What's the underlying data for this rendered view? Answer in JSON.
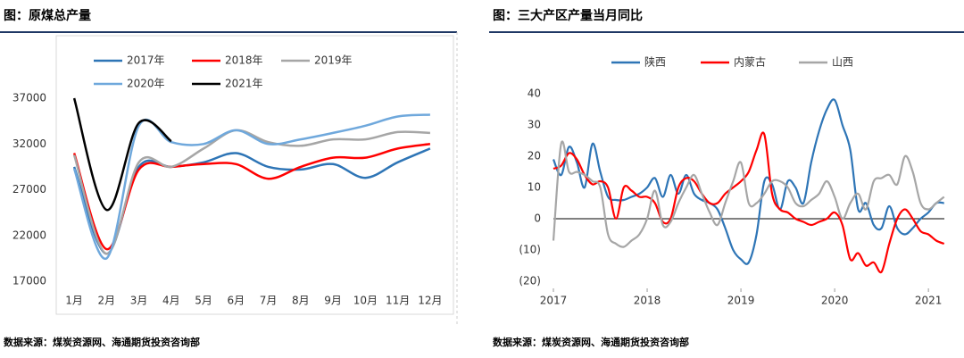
{
  "chart_data": [
    {
      "type": "line",
      "title": "图：原煤总产量",
      "source": "数据来源：煤炭资源网、海通期货投资咨询部",
      "categories": [
        "1月",
        "2月",
        "3月",
        "4月",
        "5月",
        "6月",
        "7月",
        "8月",
        "9月",
        "10月",
        "11月",
        "12月"
      ],
      "series": [
        {
          "name": "2017年",
          "color": "#2e75b6",
          "values": [
            29500,
            20000,
            29500,
            29500,
            30000,
            31000,
            29500,
            29200,
            29800,
            28300,
            30000,
            31500
          ]
        },
        {
          "name": "2018年",
          "color": "#ff0000",
          "values": [
            31000,
            20500,
            29200,
            29500,
            29800,
            29800,
            28200,
            29500,
            30500,
            30500,
            31500,
            32000
          ]
        },
        {
          "name": "2019年",
          "color": "#a6a6a6",
          "values": [
            30800,
            20000,
            30000,
            29500,
            31500,
            33500,
            32200,
            31800,
            32500,
            32500,
            33300,
            33200
          ]
        },
        {
          "name": "2020年",
          "color": "#6fa8dc",
          "values": [
            29300,
            19500,
            34000,
            32200,
            32000,
            33500,
            32000,
            32500,
            33200,
            34000,
            35000,
            35200
          ]
        },
        {
          "name": "2021年",
          "color": "#000000",
          "values": [
            37000,
            24800,
            34300,
            32300,
            null,
            null,
            null,
            null,
            null,
            null,
            null,
            null
          ]
        }
      ],
      "ylim": [
        17000,
        43000
      ],
      "yticks": [
        17000,
        22000,
        27000,
        32000,
        37000
      ]
    },
    {
      "type": "line",
      "title": "图：三大产区产量当月同比",
      "source": "数据来源：煤炭资源网、海通期货投资咨询部",
      "x": [
        2017,
        2017.083,
        2017.167,
        2017.25,
        2017.333,
        2017.417,
        2017.5,
        2017.583,
        2017.667,
        2017.75,
        2017.833,
        2017.917,
        2018,
        2018.083,
        2018.167,
        2018.25,
        2018.333,
        2018.417,
        2018.5,
        2018.583,
        2018.667,
        2018.75,
        2018.833,
        2018.917,
        2019,
        2019.083,
        2019.167,
        2019.25,
        2019.333,
        2019.417,
        2019.5,
        2019.583,
        2019.667,
        2019.75,
        2019.833,
        2019.917,
        2020,
        2020.083,
        2020.167,
        2020.25,
        2020.333,
        2020.417,
        2020.5,
        2020.583,
        2020.667,
        2020.75,
        2020.833,
        2020.917,
        2021,
        2021.083,
        2021.167
      ],
      "series": [
        {
          "name": "陕西",
          "color": "#2e75b6",
          "values": [
            19,
            14,
            23,
            18,
            10,
            24,
            15,
            7,
            6,
            6,
            7,
            8,
            10,
            13,
            7,
            14,
            8,
            14,
            8,
            6,
            5,
            3,
            -3,
            -10,
            -13,
            -14,
            -5,
            12,
            11,
            3,
            12,
            10,
            5,
            18,
            28,
            35,
            38,
            30,
            22,
            3,
            5,
            -2,
            -3,
            4,
            -3,
            -5,
            -3,
            0,
            2,
            5,
            5
          ]
        },
        {
          "name": "内蒙古",
          "color": "#ff0000",
          "values": [
            16,
            17,
            21,
            19,
            14,
            11,
            12,
            10,
            0,
            10,
            9,
            7,
            7,
            5,
            -1,
            0,
            10,
            13,
            12,
            8,
            5,
            5,
            8,
            10,
            12,
            15,
            22,
            27,
            8,
            3,
            2,
            0,
            -1,
            -2,
            -1,
            0,
            2,
            -2,
            -13,
            -11,
            -15,
            -14,
            -17,
            -8,
            0,
            3,
            0,
            -4,
            -5,
            -7,
            -8
          ]
        },
        {
          "name": "山西",
          "color": "#a6a6a6",
          "values": [
            -7,
            24,
            15,
            15,
            14,
            12,
            10,
            -5,
            -8,
            -9,
            -7,
            -5,
            0,
            9,
            -2,
            -1,
            5,
            10,
            14,
            8,
            2,
            -2,
            5,
            12,
            18,
            5,
            5,
            8,
            12,
            12,
            10,
            5,
            4,
            6,
            8,
            12,
            7,
            0,
            5,
            8,
            3,
            12,
            13,
            14,
            11,
            20,
            15,
            5,
            3,
            5,
            7
          ]
        }
      ],
      "xlim": [
        2017,
        2021.17
      ],
      "xticks": [
        2017,
        2018,
        2019,
        2020,
        2021
      ],
      "ylim": [
        -20,
        40
      ],
      "yticks": [
        40,
        30,
        20,
        10,
        0,
        {
          "value": -10,
          "label": "(10)"
        },
        {
          "value": -20,
          "label": "(20)"
        }
      ]
    }
  ]
}
